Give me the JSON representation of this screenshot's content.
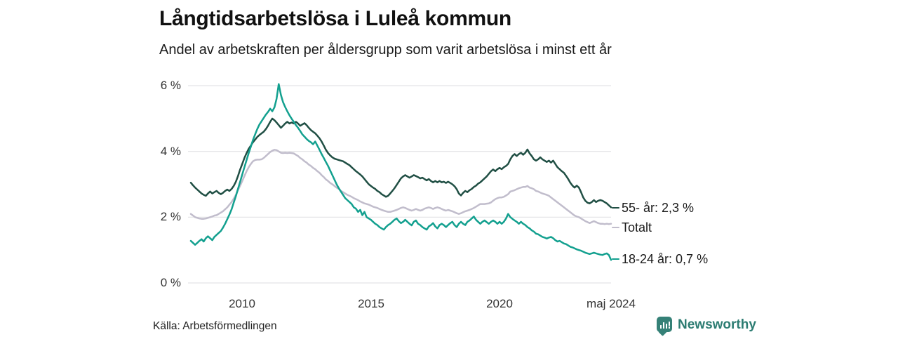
{
  "header": {
    "title": "Långtidsarbetslösa i Luleå kommun",
    "subtitle": "Andel av arbetskraften per åldersgrupp som varit arbetslösa i minst ett år"
  },
  "footer": {
    "source": "Källa: Arbetsförmedlingen",
    "brand": "Newsworthy",
    "brand_color": "#2c7c72",
    "logo_icon": "bar-chart-speech-bubble-icon"
  },
  "chart_data": {
    "type": "line",
    "title": "Långtidsarbetslösa i Luleå kommun",
    "subtitle": "Andel av arbetskraften per åldersgrupp som varit arbetslösa i minst ett år",
    "unit": "% av arbetskraften",
    "frequency": "monthly",
    "x_start": "2008-01",
    "x_end": "2024-05",
    "grid": true,
    "gridline_color": "#e3e3e6",
    "ylim": [
      0,
      6.4
    ],
    "yticks": [
      {
        "label": "0 %",
        "value": 0
      },
      {
        "label": "2 %",
        "value": 2
      },
      {
        "label": "4 %",
        "value": 4
      },
      {
        "label": "6 %",
        "value": 6
      }
    ],
    "xticks": [
      {
        "label": "2010"
      },
      {
        "label": "2015"
      },
      {
        "label": "2020"
      },
      {
        "label": "maj 2024"
      }
    ],
    "legend_position": "right-end-labels",
    "series": [
      {
        "name": "55- år",
        "end_label": "55- år: 2,3 %",
        "last_value": 2.3,
        "color": "#204f44",
        "values": [
          3.05,
          2.97,
          2.9,
          2.84,
          2.78,
          2.72,
          2.68,
          2.65,
          2.72,
          2.78,
          2.72,
          2.76,
          2.8,
          2.74,
          2.7,
          2.74,
          2.8,
          2.84,
          2.8,
          2.86,
          2.95,
          3.08,
          3.25,
          3.45,
          3.62,
          3.8,
          3.95,
          4.08,
          4.18,
          4.28,
          4.36,
          4.44,
          4.5,
          4.55,
          4.6,
          4.68,
          4.78,
          4.9,
          5.0,
          4.95,
          4.88,
          4.8,
          4.72,
          4.78,
          4.85,
          4.9,
          4.85,
          4.88,
          4.85,
          4.9,
          4.85,
          4.78,
          4.82,
          4.86,
          4.8,
          4.72,
          4.65,
          4.6,
          4.55,
          4.48,
          4.4,
          4.3,
          4.18,
          4.05,
          3.95,
          3.88,
          3.82,
          3.78,
          3.76,
          3.74,
          3.72,
          3.7,
          3.66,
          3.62,
          3.58,
          3.52,
          3.46,
          3.4,
          3.35,
          3.3,
          3.24,
          3.16,
          3.08,
          3.0,
          2.95,
          2.9,
          2.86,
          2.8,
          2.76,
          2.7,
          2.66,
          2.62,
          2.65,
          2.72,
          2.8,
          2.88,
          2.98,
          3.08,
          3.18,
          3.24,
          3.28,
          3.24,
          3.2,
          3.24,
          3.28,
          3.25,
          3.22,
          3.18,
          3.2,
          3.16,
          3.12,
          3.16,
          3.1,
          3.06,
          3.1,
          3.06,
          3.1,
          3.06,
          3.08,
          3.04,
          3.08,
          3.04,
          3.0,
          2.94,
          2.85,
          2.72,
          2.66,
          2.74,
          2.8,
          2.76,
          2.82,
          2.86,
          2.92,
          2.96,
          3.02,
          3.06,
          3.12,
          3.18,
          3.24,
          3.32,
          3.4,
          3.45,
          3.4,
          3.46,
          3.5,
          3.46,
          3.52,
          3.56,
          3.62,
          3.76,
          3.86,
          3.92,
          3.86,
          3.92,
          3.96,
          3.9,
          3.96,
          4.06,
          3.94,
          3.86,
          3.76,
          3.72,
          3.76,
          3.82,
          3.76,
          3.72,
          3.68,
          3.72,
          3.66,
          3.72,
          3.62,
          3.52,
          3.46,
          3.4,
          3.35,
          3.26,
          3.16,
          3.05,
          2.96,
          2.9,
          2.96,
          2.9,
          2.76,
          2.6,
          2.5,
          2.44,
          2.42,
          2.46,
          2.52,
          2.46,
          2.5,
          2.52,
          2.5,
          2.46,
          2.42,
          2.36,
          2.3
        ]
      },
      {
        "name": "Totalt",
        "end_label": "Totalt",
        "last_value": 1.8,
        "color": "#c1bdcc",
        "values": [
          2.1,
          2.05,
          2.0,
          1.98,
          1.96,
          1.95,
          1.95,
          1.96,
          1.98,
          2.0,
          2.02,
          2.05,
          2.06,
          2.1,
          2.14,
          2.18,
          2.24,
          2.3,
          2.38,
          2.46,
          2.56,
          2.68,
          2.82,
          2.96,
          3.1,
          3.25,
          3.4,
          3.52,
          3.62,
          3.7,
          3.74,
          3.75,
          3.75,
          3.76,
          3.8,
          3.86,
          3.92,
          3.98,
          4.02,
          4.05,
          4.04,
          4.0,
          3.96,
          3.95,
          3.96,
          3.95,
          3.96,
          3.95,
          3.94,
          3.9,
          3.86,
          3.8,
          3.76,
          3.7,
          3.66,
          3.6,
          3.56,
          3.5,
          3.46,
          3.4,
          3.35,
          3.28,
          3.22,
          3.15,
          3.1,
          3.04,
          3.0,
          2.95,
          2.9,
          2.86,
          2.8,
          2.76,
          2.72,
          2.68,
          2.65,
          2.62,
          2.58,
          2.55,
          2.52,
          2.48,
          2.45,
          2.42,
          2.4,
          2.38,
          2.35,
          2.32,
          2.3,
          2.28,
          2.25,
          2.22,
          2.2,
          2.18,
          2.16,
          2.16,
          2.18,
          2.2,
          2.22,
          2.25,
          2.28,
          2.3,
          2.28,
          2.25,
          2.22,
          2.2,
          2.22,
          2.25,
          2.22,
          2.2,
          2.22,
          2.26,
          2.28,
          2.3,
          2.28,
          2.25,
          2.28,
          2.3,
          2.28,
          2.25,
          2.22,
          2.2,
          2.22,
          2.2,
          2.18,
          2.15,
          2.12,
          2.1,
          2.12,
          2.15,
          2.18,
          2.2,
          2.22,
          2.25,
          2.28,
          2.32,
          2.36,
          2.4,
          2.4,
          2.4,
          2.41,
          2.42,
          2.45,
          2.5,
          2.55,
          2.58,
          2.6,
          2.6,
          2.62,
          2.66,
          2.7,
          2.78,
          2.8,
          2.82,
          2.85,
          2.88,
          2.9,
          2.92,
          2.92,
          2.95,
          2.9,
          2.88,
          2.85,
          2.8,
          2.78,
          2.75,
          2.72,
          2.7,
          2.68,
          2.65,
          2.6,
          2.55,
          2.5,
          2.45,
          2.4,
          2.35,
          2.3,
          2.25,
          2.2,
          2.15,
          2.1,
          2.05,
          2.02,
          2.0,
          1.96,
          1.92,
          1.88,
          1.85,
          1.82,
          1.85,
          1.88,
          1.85,
          1.82,
          1.8,
          1.8,
          1.79,
          1.8,
          1.79,
          1.8
        ]
      },
      {
        "name": "18-24 år",
        "end_label": "18-24 år: 0,7 %",
        "last_value": 0.7,
        "color": "#13a08f",
        "values": [
          1.28,
          1.22,
          1.16,
          1.22,
          1.28,
          1.33,
          1.26,
          1.36,
          1.42,
          1.36,
          1.3,
          1.4,
          1.46,
          1.52,
          1.58,
          1.68,
          1.8,
          1.94,
          2.08,
          2.24,
          2.44,
          2.64,
          2.86,
          3.08,
          3.3,
          3.52,
          3.74,
          3.95,
          4.15,
          4.35,
          4.52,
          4.68,
          4.82,
          4.92,
          5.02,
          5.12,
          5.2,
          5.3,
          5.22,
          5.34,
          5.6,
          6.05,
          5.72,
          5.5,
          5.35,
          5.22,
          5.1,
          5.0,
          4.9,
          4.8,
          4.72,
          4.62,
          4.52,
          4.45,
          4.38,
          4.32,
          4.28,
          4.22,
          4.3,
          4.18,
          4.05,
          3.92,
          3.8,
          3.68,
          3.56,
          3.42,
          3.28,
          3.14,
          3.0,
          2.88,
          2.78,
          2.68,
          2.58,
          2.52,
          2.46,
          2.4,
          2.3,
          2.26,
          2.16,
          2.22,
          2.06,
          2.16,
          2.0,
          1.96,
          1.92,
          1.86,
          1.8,
          1.76,
          1.7,
          1.66,
          1.62,
          1.7,
          1.76,
          1.8,
          1.86,
          1.92,
          1.96,
          1.88,
          1.82,
          1.86,
          1.92,
          1.86,
          1.8,
          1.75,
          1.86,
          1.9,
          1.8,
          1.76,
          1.7,
          1.66,
          1.62,
          1.72,
          1.76,
          1.82,
          1.72,
          1.66,
          1.76,
          1.8,
          1.76,
          1.7,
          1.76,
          1.82,
          1.86,
          1.76,
          1.7,
          1.8,
          1.86,
          1.8,
          1.76,
          1.86,
          1.9,
          1.96,
          2.02,
          1.92,
          1.86,
          1.8,
          1.86,
          1.9,
          1.85,
          1.8,
          1.86,
          1.9,
          1.86,
          1.8,
          1.86,
          1.8,
          1.86,
          1.96,
          2.1,
          2.0,
          1.95,
          1.9,
          1.86,
          1.8,
          1.86,
          1.8,
          1.76,
          1.7,
          1.66,
          1.6,
          1.56,
          1.5,
          1.48,
          1.44,
          1.4,
          1.38,
          1.35,
          1.38,
          1.4,
          1.36,
          1.3,
          1.26,
          1.28,
          1.24,
          1.2,
          1.18,
          1.14,
          1.1,
          1.08,
          1.05,
          1.02,
          1.0,
          0.98,
          0.95,
          0.92,
          0.9,
          0.88,
          0.9,
          0.92,
          0.9,
          0.88,
          0.86,
          0.85,
          0.88,
          0.9,
          0.85,
          0.7
        ]
      }
    ]
  }
}
